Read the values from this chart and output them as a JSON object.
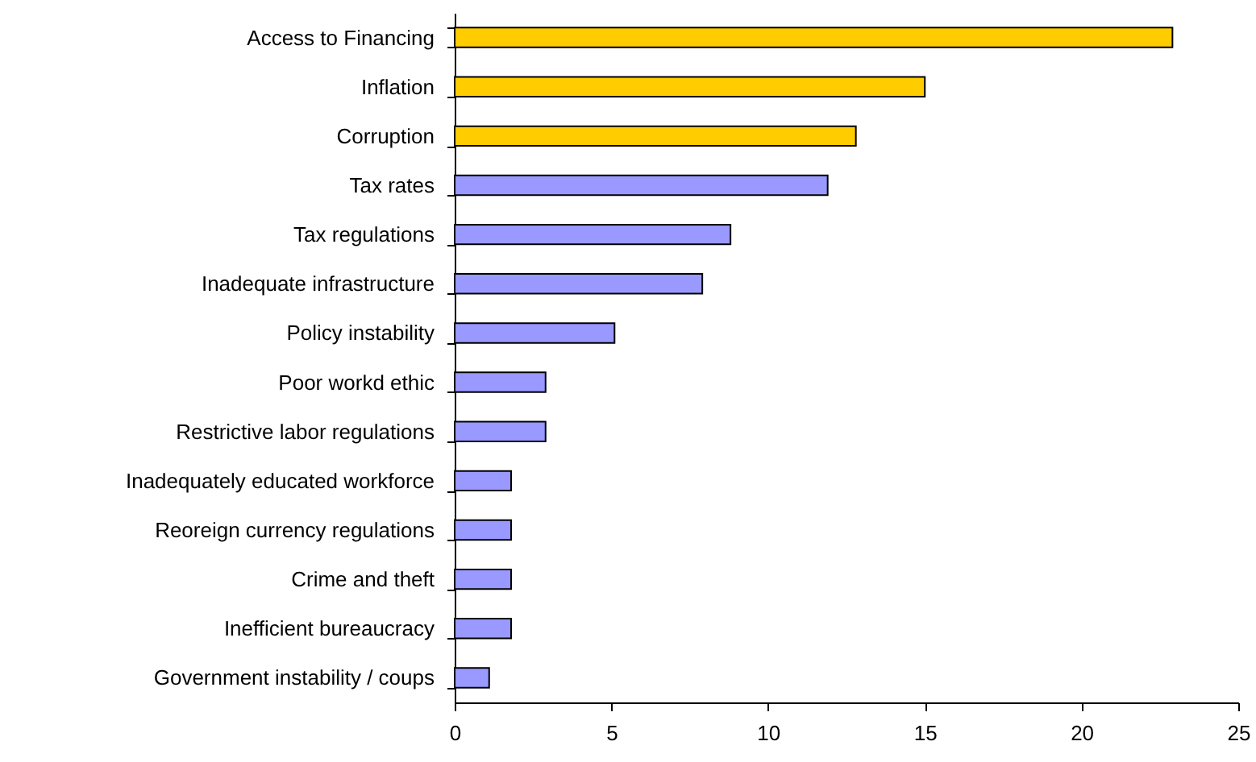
{
  "chart_data": {
    "type": "bar",
    "orientation": "horizontal",
    "categories": [
      "Access to Financing",
      "Inflation",
      "Corruption",
      "Tax rates",
      "Tax regulations",
      "Inadequate infrastructure",
      "Policy instability",
      "Poor workd ethic",
      "Restrictive labor regulations",
      "Inadequately educated workforce",
      "Reoreign currency regulations",
      "Crime and theft",
      "Inefficient bureaucracy",
      "Government instability / coups"
    ],
    "values": [
      22.9,
      15.0,
      12.8,
      11.9,
      8.8,
      7.9,
      5.1,
      2.9,
      2.9,
      1.8,
      1.8,
      1.8,
      1.8,
      1.1
    ],
    "colors": [
      "#ffcc00",
      "#ffcc00",
      "#ffcc00",
      "#9999ff",
      "#9999ff",
      "#9999ff",
      "#9999ff",
      "#9999ff",
      "#9999ff",
      "#9999ff",
      "#9999ff",
      "#9999ff",
      "#9999ff",
      "#9999ff"
    ],
    "xlim": [
      0,
      25
    ],
    "xticks": [
      0,
      5,
      10,
      15,
      20,
      25
    ],
    "grid": false
  }
}
